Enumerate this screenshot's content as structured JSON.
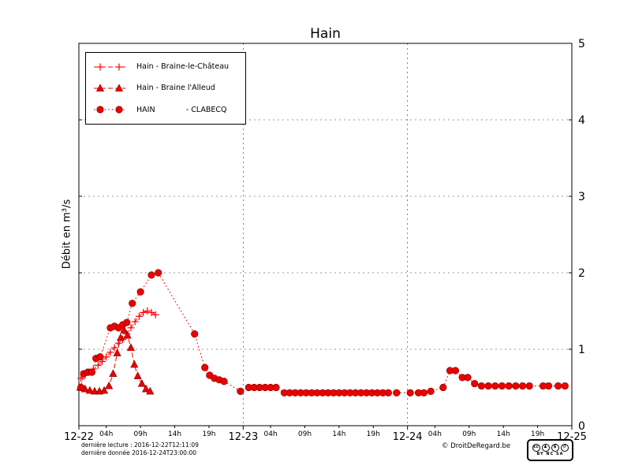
{
  "title": "Hain",
  "ylabel": "Débit en m³/s",
  "footer": {
    "derniere_lecture": "dernière lecture : 2016-12-22T12:11:09",
    "derniere_donnee": "dernière donnée  2016-12-24T23:00:00",
    "copyright": "© DroitDeRegard.be",
    "cc_badge": {
      "cc": "cc",
      "by_icon": "♟",
      "nc_icon": "$",
      "sa_icon": "↺",
      "caption": "BY NC SA"
    }
  },
  "chart_data": {
    "type": "line",
    "title": "Hain",
    "ylabel": "Débit en m³/s",
    "ylim": [
      0,
      5
    ],
    "yticks": [
      0,
      1,
      2,
      3,
      4,
      5
    ],
    "x_range_hours": [
      0,
      72
    ],
    "grid": true,
    "legend_position": "upper left",
    "x_major": [
      {
        "hour": 0,
        "label": "12-22"
      },
      {
        "hour": 24,
        "label": "12-23"
      },
      {
        "hour": 48,
        "label": "12-24"
      },
      {
        "hour": 72,
        "label": "12-25"
      }
    ],
    "x_minor": [
      {
        "hour": 4,
        "label": "04h"
      },
      {
        "hour": 9,
        "label": "09h"
      },
      {
        "hour": 14,
        "label": "14h"
      },
      {
        "hour": 19,
        "label": "19h"
      },
      {
        "hour": 28,
        "label": "04h"
      },
      {
        "hour": 33,
        "label": "09h"
      },
      {
        "hour": 38,
        "label": "14h"
      },
      {
        "hour": 43,
        "label": "19h"
      },
      {
        "hour": 52,
        "label": "04h"
      },
      {
        "hour": 57,
        "label": "09h"
      },
      {
        "hour": 62,
        "label": "14h"
      },
      {
        "hour": 67,
        "label": "19h"
      }
    ],
    "series": [
      {
        "name": "Hain - Braine-le-Château",
        "marker": "plus",
        "linestyle": "dashed",
        "color": "#ff0000",
        "points": [
          [
            0.3,
            0.62
          ],
          [
            0.9,
            0.66
          ],
          [
            1.5,
            0.7
          ],
          [
            2.1,
            0.74
          ],
          [
            2.8,
            0.79
          ],
          [
            3.4,
            0.84
          ],
          [
            4,
            0.9
          ],
          [
            4.6,
            0.96
          ],
          [
            5.2,
            1.02
          ],
          [
            5.8,
            1.08
          ],
          [
            6.4,
            1.13
          ],
          [
            7,
            1.2
          ],
          [
            7.6,
            1.28
          ],
          [
            8.2,
            1.36
          ],
          [
            8.8,
            1.43
          ],
          [
            9.4,
            1.48
          ],
          [
            10,
            1.5
          ],
          [
            10.6,
            1.48
          ],
          [
            11.2,
            1.45
          ]
        ]
      },
      {
        "name": "Hain - Braine l'Alleud",
        "marker": "triangle",
        "linestyle": "dashed",
        "color": "#ee0000",
        "points": [
          [
            0.2,
            0.5
          ],
          [
            0.9,
            0.48
          ],
          [
            1.6,
            0.46
          ],
          [
            2.3,
            0.45
          ],
          [
            3,
            0.45
          ],
          [
            3.7,
            0.46
          ],
          [
            4.4,
            0.52
          ],
          [
            5,
            0.68
          ],
          [
            5.6,
            0.95
          ],
          [
            6.1,
            1.15
          ],
          [
            6.6,
            1.25
          ],
          [
            7.1,
            1.18
          ],
          [
            7.6,
            1.02
          ],
          [
            8.1,
            0.8
          ],
          [
            8.6,
            0.65
          ],
          [
            9.2,
            0.55
          ],
          [
            9.8,
            0.48
          ],
          [
            10.4,
            0.45
          ]
        ]
      },
      {
        "name": "HAIN             - CLABECQ",
        "marker": "circle",
        "linestyle": "dotted",
        "color": "#ee0000",
        "points": [
          [
            0.3,
            0.5
          ],
          [
            0.7,
            0.68
          ],
          [
            1.3,
            0.7
          ],
          [
            1.9,
            0.7
          ],
          [
            2.5,
            0.88
          ],
          [
            3.1,
            0.9
          ],
          [
            4.6,
            1.28
          ],
          [
            5.2,
            1.3
          ],
          [
            5.8,
            1.28
          ],
          [
            6.4,
            1.32
          ],
          [
            7,
            1.35
          ],
          [
            7.8,
            1.6
          ],
          [
            9,
            1.75
          ],
          [
            10.6,
            1.97
          ],
          [
            11.6,
            2
          ],
          [
            16.9,
            1.2
          ],
          [
            18.4,
            0.76
          ],
          [
            19.1,
            0.66
          ],
          [
            19.8,
            0.62
          ],
          [
            20.5,
            0.6
          ],
          [
            21.2,
            0.58
          ],
          [
            23.6,
            0.45
          ],
          [
            24.8,
            0.5
          ],
          [
            25.6,
            0.5
          ],
          [
            26.4,
            0.5
          ],
          [
            27.2,
            0.5
          ],
          [
            28,
            0.5
          ],
          [
            28.8,
            0.5
          ],
          [
            30,
            0.43
          ],
          [
            30.8,
            0.43
          ],
          [
            31.6,
            0.43
          ],
          [
            32.4,
            0.43
          ],
          [
            33.2,
            0.43
          ],
          [
            34,
            0.43
          ],
          [
            34.8,
            0.43
          ],
          [
            35.6,
            0.43
          ],
          [
            36.4,
            0.43
          ],
          [
            37.2,
            0.43
          ],
          [
            38,
            0.43
          ],
          [
            38.8,
            0.43
          ],
          [
            39.6,
            0.43
          ],
          [
            40.4,
            0.43
          ],
          [
            41.2,
            0.43
          ],
          [
            42,
            0.43
          ],
          [
            42.8,
            0.43
          ],
          [
            43.6,
            0.43
          ],
          [
            44.4,
            0.43
          ],
          [
            45.2,
            0.43
          ],
          [
            46.4,
            0.43
          ],
          [
            48.4,
            0.43
          ],
          [
            49.6,
            0.43
          ],
          [
            50.4,
            0.43
          ],
          [
            51.4,
            0.45
          ],
          [
            53.2,
            0.5
          ],
          [
            54.2,
            0.72
          ],
          [
            55,
            0.72
          ],
          [
            56,
            0.63
          ],
          [
            56.8,
            0.63
          ],
          [
            57.8,
            0.55
          ],
          [
            58.8,
            0.52
          ],
          [
            59.8,
            0.52
          ],
          [
            60.8,
            0.52
          ],
          [
            61.8,
            0.52
          ],
          [
            62.8,
            0.52
          ],
          [
            63.8,
            0.52
          ],
          [
            64.8,
            0.52
          ],
          [
            65.8,
            0.52
          ],
          [
            67.8,
            0.52
          ],
          [
            68.6,
            0.52
          ],
          [
            70,
            0.52
          ],
          [
            71,
            0.52
          ]
        ]
      }
    ]
  }
}
